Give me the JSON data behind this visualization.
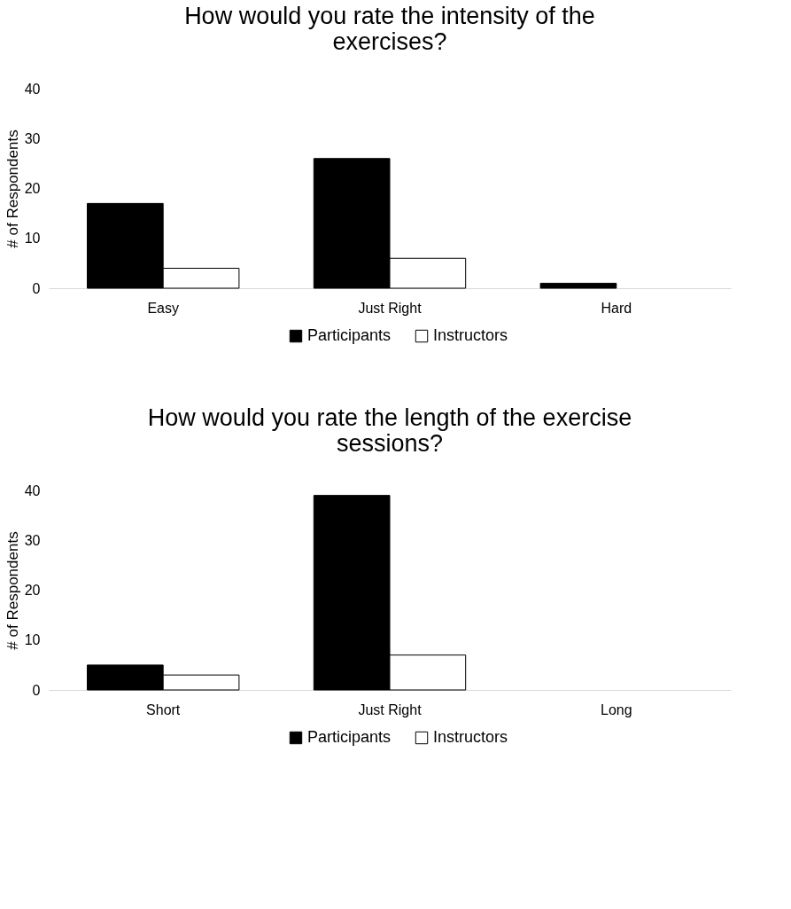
{
  "chart_data": [
    {
      "type": "bar",
      "title": "How would you rate the intensity of the exercises?",
      "ylabel": "# of Respondents",
      "categories": [
        "Easy",
        "Just Right",
        "Hard"
      ],
      "series": [
        {
          "name": "Participants",
          "color": "#000000",
          "values": [
            17,
            26,
            1
          ]
        },
        {
          "name": "Instructors",
          "color": "#ffffff",
          "values": [
            4,
            6,
            0
          ]
        }
      ],
      "ylim": [
        0,
        40
      ],
      "yticks": [
        0,
        10,
        20,
        30,
        40
      ],
      "grid": false,
      "legend": "bottom"
    },
    {
      "type": "bar",
      "title": "How would you rate the length of the exercise sessions?",
      "ylabel": "# of Respondents",
      "categories": [
        "Short",
        "Just Right",
        "Long"
      ],
      "series": [
        {
          "name": "Participants",
          "color": "#000000",
          "values": [
            5,
            39,
            0
          ]
        },
        {
          "name": "Instructors",
          "color": "#ffffff",
          "values": [
            3,
            7,
            0
          ]
        }
      ],
      "ylim": [
        0,
        40
      ],
      "yticks": [
        0,
        10,
        20,
        30,
        40
      ],
      "grid": false,
      "legend": "bottom"
    }
  ]
}
